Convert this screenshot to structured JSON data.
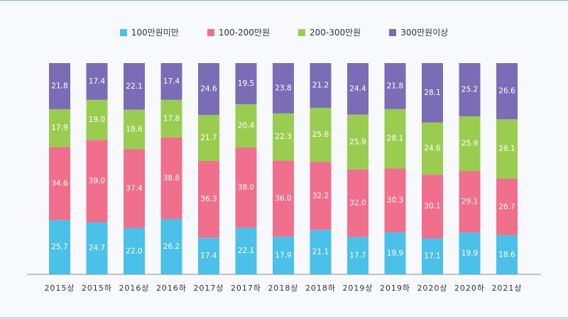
{
  "chart_data": {
    "type": "bar",
    "stacked": true,
    "title": "",
    "xlabel": "",
    "ylabel": "",
    "ylim": [
      0,
      100
    ],
    "categories": [
      "2015상",
      "2015하",
      "2016상",
      "2016하",
      "2017상",
      "2017하",
      "2018상",
      "2018하",
      "2019상",
      "2019하",
      "2020상",
      "2020하",
      "2021상"
    ],
    "series": [
      {
        "name": "100만원미만",
        "color": "#4bc0e8",
        "values": [
          25.7,
          24.7,
          22.0,
          26.2,
          17.4,
          22.1,
          17.9,
          21.1,
          17.7,
          19.9,
          17.1,
          19.9,
          18.6
        ]
      },
      {
        "name": "100-200만원",
        "color": "#f06f8c",
        "values": [
          34.6,
          39.0,
          37.4,
          38.6,
          36.3,
          38.0,
          36.0,
          32.2,
          32.0,
          30.3,
          30.1,
          29.1,
          26.7
        ]
      },
      {
        "name": "200-300만원",
        "color": "#9acd4f",
        "values": [
          17.9,
          19.0,
          18.6,
          17.8,
          21.7,
          20.4,
          22.3,
          25.6,
          25.9,
          28.1,
          24.6,
          25.9,
          28.1
        ]
      },
      {
        "name": "300만원이상",
        "color": "#7a6db5",
        "values": [
          21.8,
          17.4,
          22.1,
          17.4,
          24.6,
          19.5,
          23.8,
          21.2,
          24.4,
          21.8,
          28.1,
          25.2,
          26.6
        ]
      }
    ],
    "legend": "top-center",
    "grid": false
  }
}
